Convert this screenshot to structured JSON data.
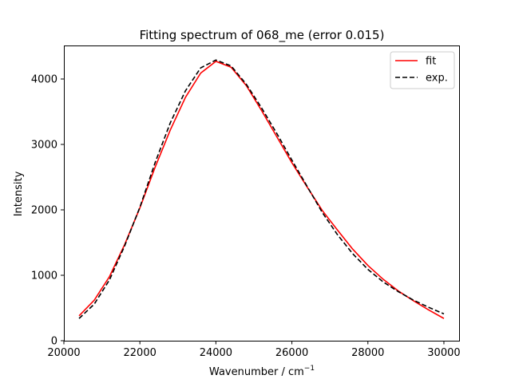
{
  "chart_data": {
    "type": "line",
    "title": "Fitting spectrum of 068_me (error 0.015)",
    "xlabel": "Wavenumber / cm",
    "xlabel_superscript": "−1",
    "ylabel": "Intensity",
    "xlim": [
      20000,
      30400
    ],
    "ylim": [
      0,
      4500
    ],
    "xticks": [
      20000,
      22000,
      24000,
      26000,
      28000,
      30000
    ],
    "yticks": [
      0,
      1000,
      2000,
      3000,
      4000
    ],
    "legend_position": "upper-right",
    "grid": false,
    "series": [
      {
        "name": "fit",
        "color": "#ff0000",
        "style": "solid",
        "x": [
          20400,
          20800,
          21200,
          21600,
          22000,
          22400,
          22800,
          23200,
          23600,
          24000,
          24400,
          24800,
          25200,
          25600,
          26000,
          26400,
          26800,
          27200,
          27600,
          28000,
          28400,
          28800,
          29200,
          29600,
          30000
        ],
        "y": [
          380,
          620,
          980,
          1470,
          2030,
          2650,
          3220,
          3720,
          4090,
          4270,
          4180,
          3900,
          3520,
          3120,
          2720,
          2350,
          1990,
          1690,
          1400,
          1150,
          940,
          760,
          610,
          470,
          340
        ]
      },
      {
        "name": "exp.",
        "color": "#000000",
        "style": "dashed",
        "x": [
          20400,
          20800,
          21200,
          21600,
          22000,
          22400,
          22800,
          23200,
          23600,
          24000,
          24400,
          24800,
          25200,
          25600,
          26000,
          26400,
          26800,
          27200,
          27600,
          28000,
          28400,
          28800,
          29200,
          29600,
          30000
        ],
        "y": [
          340,
          560,
          930,
          1450,
          2040,
          2720,
          3330,
          3820,
          4170,
          4290,
          4200,
          3920,
          3560,
          3170,
          2760,
          2360,
          1960,
          1620,
          1330,
          1090,
          900,
          750,
          620,
          510,
          410
        ]
      }
    ]
  }
}
